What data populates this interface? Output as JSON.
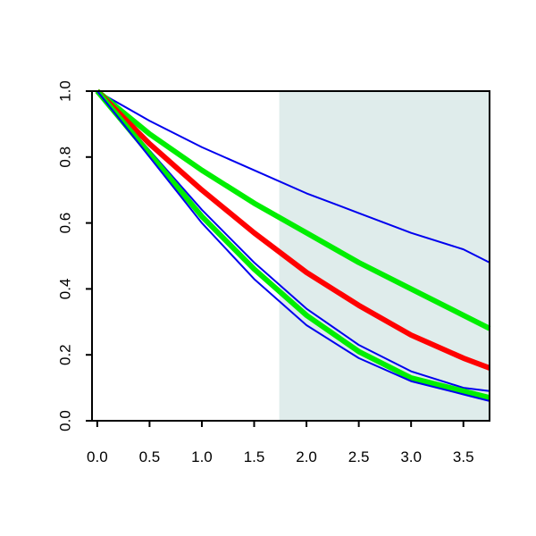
{
  "chart_data": {
    "type": "line",
    "title": "",
    "xlabel": "",
    "ylabel": "",
    "xlim": [
      -0.05,
      3.75
    ],
    "ylim": [
      0,
      1.0
    ],
    "grid": false,
    "x_ticks": [
      "0.0",
      "0.5",
      "1.0",
      "1.5",
      "2.0",
      "2.5",
      "3.0",
      "3.5"
    ],
    "y_ticks": [
      "0.0",
      "0.2",
      "0.4",
      "0.6",
      "0.8",
      "1.0"
    ],
    "shaded_region": {
      "x_start": 1.74,
      "x_end": 3.75,
      "color": "#dfeceb"
    },
    "series": [
      {
        "color": "#0000ee",
        "width": "thin",
        "x": [
          0,
          0.5,
          1.0,
          1.5,
          2.0,
          2.5,
          3.0,
          3.5,
          3.75
        ],
        "y": [
          1.0,
          0.91,
          0.83,
          0.76,
          0.69,
          0.63,
          0.57,
          0.52,
          0.48
        ]
      },
      {
        "color": "#00ee00",
        "width": "thick",
        "x": [
          0,
          0.5,
          1.0,
          1.5,
          2.0,
          2.5,
          3.0,
          3.5,
          3.75
        ],
        "y": [
          1.0,
          0.87,
          0.76,
          0.66,
          0.57,
          0.48,
          0.4,
          0.32,
          0.28
        ]
      },
      {
        "color": "#ff0000",
        "width": "thick",
        "x": [
          0,
          0.5,
          1.0,
          1.5,
          2.0,
          2.5,
          3.0,
          3.5,
          3.75
        ],
        "y": [
          1.0,
          0.84,
          0.7,
          0.57,
          0.45,
          0.35,
          0.26,
          0.19,
          0.16
        ]
      },
      {
        "color": "#0000ee",
        "width": "thin",
        "x": [
          0,
          0.5,
          1.0,
          1.5,
          2.0,
          2.5,
          3.0,
          3.5,
          3.75
        ],
        "y": [
          1.0,
          0.82,
          0.64,
          0.48,
          0.34,
          0.23,
          0.15,
          0.1,
          0.09
        ]
      },
      {
        "color": "#00ee00",
        "width": "thick",
        "x": [
          0,
          0.5,
          1.0,
          1.5,
          2.0,
          2.5,
          3.0,
          3.5,
          3.75
        ],
        "y": [
          1.0,
          0.81,
          0.62,
          0.46,
          0.32,
          0.21,
          0.13,
          0.09,
          0.07
        ]
      },
      {
        "color": "#0000ee",
        "width": "thin",
        "x": [
          0,
          0.5,
          1.0,
          1.5,
          2.0,
          2.5,
          3.0,
          3.5,
          3.75
        ],
        "y": [
          1.0,
          0.8,
          0.6,
          0.43,
          0.29,
          0.19,
          0.12,
          0.08,
          0.06
        ]
      }
    ]
  }
}
